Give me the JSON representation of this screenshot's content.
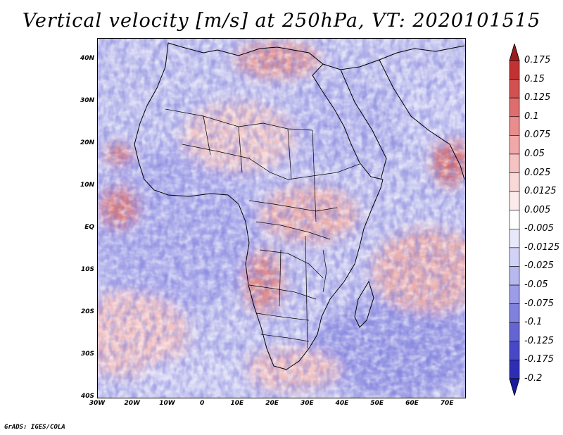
{
  "title": "Vertical velocity [m/s] at 250hPa, VT: 2020101515",
  "footer": "GrADS: IGES/COLA",
  "map": {
    "projection": "lat-lon",
    "lon_range": [
      -30,
      75
    ],
    "lat_range": [
      -40,
      45
    ],
    "x_ticks": [
      {
        "lon": -30,
        "label": "30W"
      },
      {
        "lon": -20,
        "label": "20W"
      },
      {
        "lon": -10,
        "label": "10W"
      },
      {
        "lon": 0,
        "label": "0"
      },
      {
        "lon": 10,
        "label": "10E"
      },
      {
        "lon": 20,
        "label": "20E"
      },
      {
        "lon": 30,
        "label": "30E"
      },
      {
        "lon": 40,
        "label": "40E"
      },
      {
        "lon": 50,
        "label": "50E"
      },
      {
        "lon": 60,
        "label": "60E"
      },
      {
        "lon": 70,
        "label": "70E"
      }
    ],
    "y_ticks": [
      {
        "lat": 40,
        "label": "40N"
      },
      {
        "lat": 30,
        "label": "30N"
      },
      {
        "lat": 20,
        "label": "20N"
      },
      {
        "lat": 10,
        "label": "10N"
      },
      {
        "lat": 0,
        "label": "EQ"
      },
      {
        "lat": -10,
        "label": "10S"
      },
      {
        "lat": -20,
        "label": "20S"
      },
      {
        "lat": -30,
        "label": "30S"
      },
      {
        "lat": -40,
        "label": "40S"
      }
    ]
  },
  "colorbar": {
    "colors": {
      "top_arrow": "#9b1c1c",
      "bottom_arrow": "#1a1aa0"
    },
    "levels": [
      {
        "label": "0.175",
        "color": "#c23232"
      },
      {
        "label": "0.15",
        "color": "#d25050"
      },
      {
        "label": "0.125",
        "color": "#de6e6e"
      },
      {
        "label": "0.1",
        "color": "#e88c8c"
      },
      {
        "label": "0.075",
        "color": "#f0a8a8"
      },
      {
        "label": "0.05",
        "color": "#f6c2c2"
      },
      {
        "label": "0.025",
        "color": "#fad8d8"
      },
      {
        "label": "0.0125",
        "color": "#fdeaea"
      },
      {
        "label": "0.005",
        "color": "#ffffff"
      },
      {
        "label": "-0.005",
        "color": "#e8e8fb"
      },
      {
        "label": "-0.0125",
        "color": "#d2d2f6"
      },
      {
        "label": "-0.025",
        "color": "#b8b8f0"
      },
      {
        "label": "-0.05",
        "color": "#9c9ce8"
      },
      {
        "label": "-0.075",
        "color": "#8080de"
      },
      {
        "label": "-0.1",
        "color": "#6464d2"
      },
      {
        "label": "-0.125",
        "color": "#4848c6"
      },
      {
        "label": "-0.175",
        "color": "#2e2eb4"
      },
      {
        "label": "-0.2",
        "color": "#1a1aa0"
      }
    ]
  }
}
